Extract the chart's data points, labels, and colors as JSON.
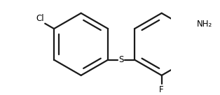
{
  "bg_color": "#ffffff",
  "line_color": "#1a1a1a",
  "text_color": "#000000",
  "label_Cl": "Cl",
  "label_S": "S",
  "label_F": "F",
  "label_NH2": "NH₂",
  "figsize": [
    3.14,
    1.36
  ],
  "dpi": 100,
  "ring_r": 0.27,
  "lw": 1.6,
  "font_size": 8.5
}
